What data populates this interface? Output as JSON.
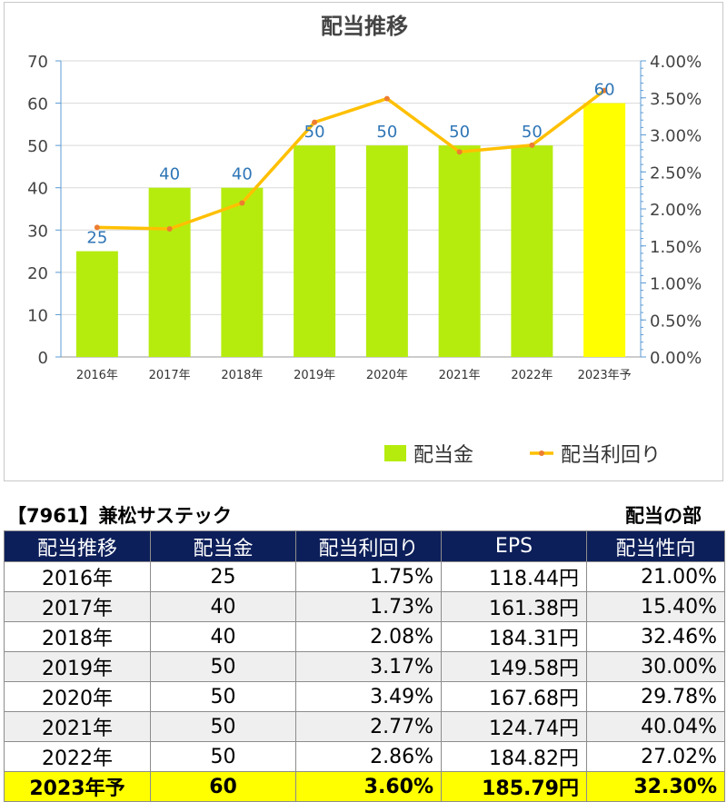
{
  "chart_data": {
    "type": "bar",
    "title": "配当推移",
    "categories": [
      "2016年",
      "2017年",
      "2018年",
      "2019年",
      "2020年",
      "2021年",
      "2022年",
      "2023年予"
    ],
    "series": [
      {
        "name": "配当金",
        "type": "bar",
        "axis": "left",
        "values": [
          25,
          40,
          40,
          50,
          50,
          50,
          50,
          60
        ],
        "data_labels": [
          "25",
          "40",
          "40",
          "50",
          "50",
          "50",
          "50",
          "60"
        ]
      },
      {
        "name": "配当利回り",
        "type": "line",
        "axis": "right",
        "values": [
          1.75,
          1.73,
          2.08,
          3.17,
          3.49,
          2.77,
          2.86,
          3.6
        ]
      }
    ],
    "y_left": {
      "min": 0,
      "max": 70,
      "ticks": [
        "0",
        "10",
        "20",
        "30",
        "40",
        "50",
        "60",
        "70"
      ]
    },
    "y_right": {
      "min": 0,
      "max": 4,
      "ticks": [
        "0.00%",
        "0.50%",
        "1.00%",
        "1.50%",
        "2.00%",
        "2.50%",
        "3.00%",
        "3.50%",
        "4.00%"
      ]
    },
    "legend_position": "bottom-right",
    "colors": {
      "bar": "#b5ec0e",
      "bar_forecast": "#ffff00",
      "line": "#ffc000",
      "marker": "#ed7d31",
      "data_label": "#2e75b6"
    }
  },
  "table": {
    "brand": "【7961】兼松サステック",
    "section": "配当の部",
    "headers": [
      "配当推移",
      "配当金",
      "配当利回り",
      "EPS",
      "配当性向"
    ],
    "rows": [
      [
        "2016年",
        "25",
        "1.75%",
        "118.44円",
        "21.00%"
      ],
      [
        "2017年",
        "40",
        "1.73%",
        "161.38円",
        "15.40%"
      ],
      [
        "2018年",
        "40",
        "2.08%",
        "184.31円",
        "32.46%"
      ],
      [
        "2019年",
        "50",
        "3.17%",
        "149.58円",
        "30.00%"
      ],
      [
        "2020年",
        "50",
        "3.49%",
        "167.68円",
        "29.78%"
      ],
      [
        "2021年",
        "50",
        "2.77%",
        "124.74円",
        "40.04%"
      ],
      [
        "2022年",
        "50",
        "2.86%",
        "184.82円",
        "27.02%"
      ],
      [
        "2023年予",
        "60",
        "3.60%",
        "185.79円",
        "32.30%"
      ]
    ],
    "header_bg": "#0d1f5a",
    "highlight_bg": "#ffff00"
  }
}
